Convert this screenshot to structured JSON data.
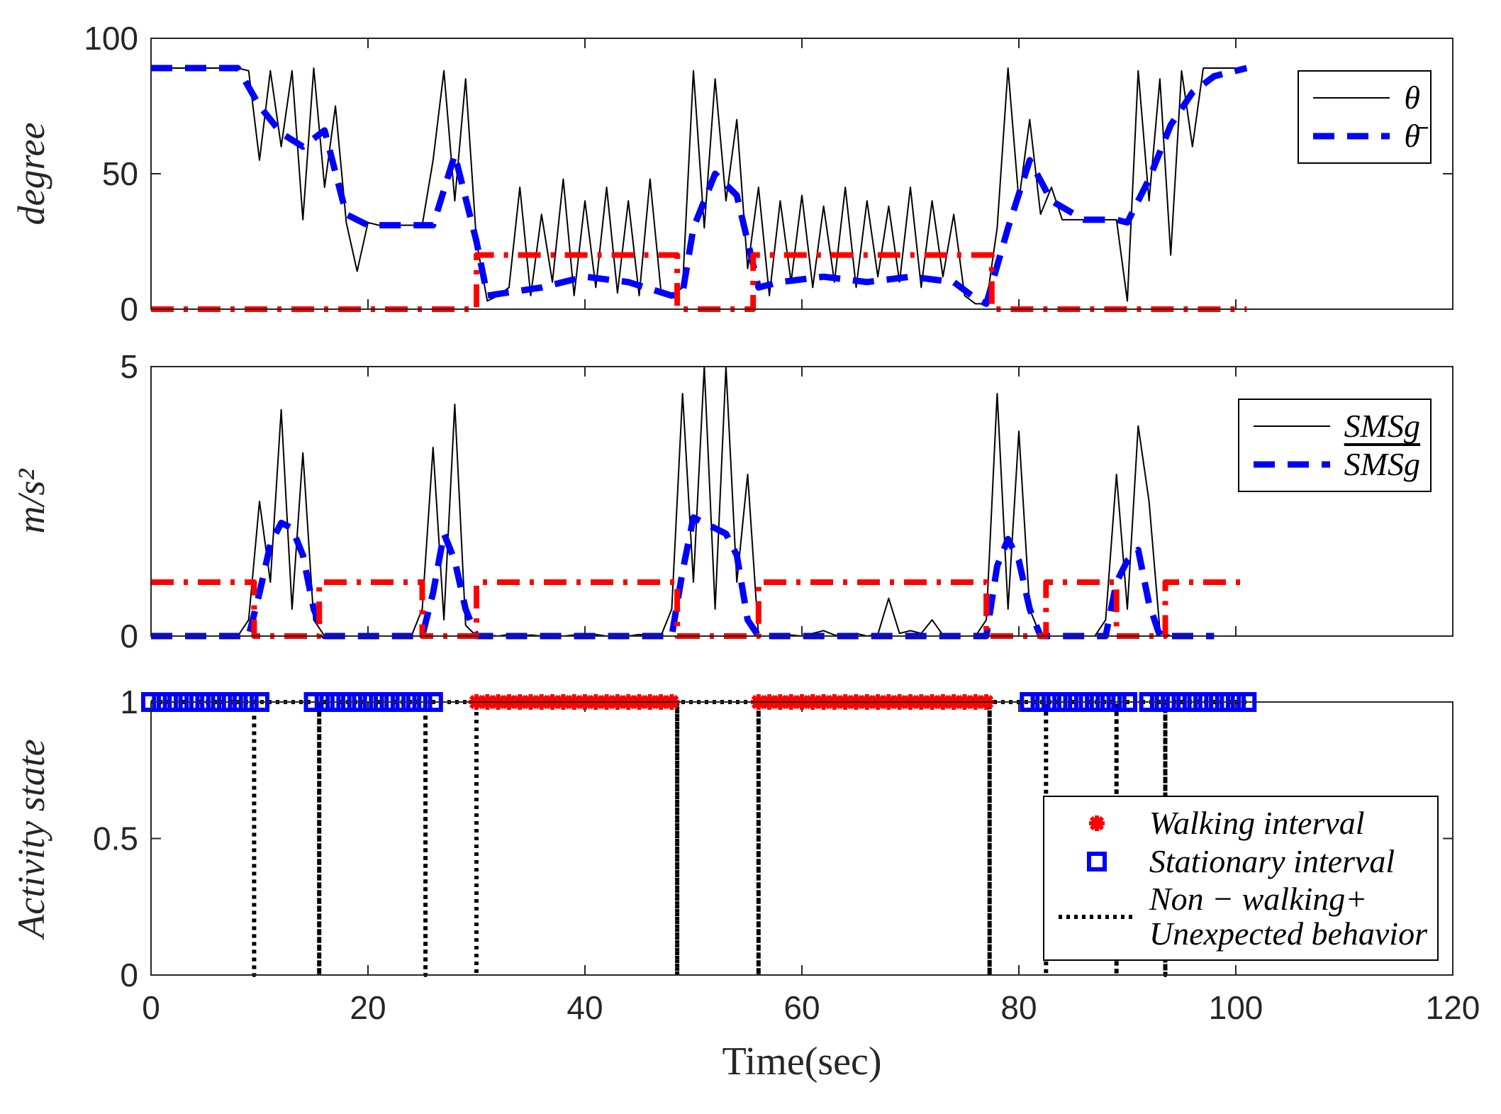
{
  "chart_data": [
    {
      "type": "line",
      "ylabel": "degree",
      "xlim": [
        0,
        120
      ],
      "xticks": [
        0,
        20,
        40,
        60,
        80,
        100,
        120
      ],
      "xtick_labels": false,
      "ylim": [
        0,
        100
      ],
      "yticks": [
        0,
        50,
        100
      ],
      "legend": "upper right",
      "series": [
        {
          "name": "θ",
          "color": "#000000",
          "style": "solid",
          "x": [
            0,
            1,
            2,
            3,
            4,
            5,
            6,
            7,
            8,
            9,
            10,
            11,
            12,
            13,
            14,
            15,
            16,
            17,
            18,
            19,
            20,
            21,
            22,
            23,
            24,
            25,
            26,
            27,
            28,
            29,
            30,
            31,
            32,
            33,
            34,
            35,
            36,
            37,
            38,
            39,
            40,
            41,
            42,
            43,
            44,
            45,
            46,
            47,
            48,
            49,
            50,
            51,
            52,
            53,
            54,
            55,
            56,
            57,
            58,
            59,
            60,
            61,
            62,
            63,
            64,
            65,
            66,
            67,
            68,
            69,
            70,
            71,
            72,
            73,
            74,
            75,
            76,
            77,
            78,
            79,
            80,
            81,
            82,
            83,
            84,
            85,
            86,
            87,
            88,
            89,
            90,
            91,
            92,
            93,
            94,
            95,
            96,
            97,
            98,
            99,
            100,
            101
          ],
          "values": [
            89,
            89,
            89,
            89,
            89,
            89,
            89,
            89,
            89,
            88,
            55,
            88,
            60,
            88,
            33,
            89,
            45,
            75,
            32,
            14,
            32,
            31,
            31,
            31,
            31,
            31,
            55,
            88,
            40,
            85,
            25,
            3,
            5,
            8,
            45,
            5,
            35,
            10,
            48,
            5,
            40,
            8,
            45,
            6,
            40,
            5,
            48,
            7,
            5,
            8,
            88,
            30,
            85,
            40,
            70,
            15,
            45,
            5,
            40,
            10,
            42,
            8,
            38,
            10,
            45,
            8,
            40,
            12,
            38,
            10,
            45,
            8,
            40,
            12,
            35,
            5,
            2,
            2,
            30,
            89,
            40,
            70,
            35,
            45,
            33,
            33,
            33,
            33,
            33,
            33,
            3,
            88,
            40,
            85,
            20,
            88,
            60,
            89,
            89,
            89,
            89,
            89
          ]
        },
        {
          "name": "θ̄",
          "color": "#0000ff",
          "style": "dashed",
          "x": [
            0,
            8,
            10,
            12,
            14,
            16,
            18,
            20,
            26,
            28,
            30,
            31,
            36,
            40,
            44,
            48,
            49,
            50,
            52,
            54,
            56,
            58,
            62,
            66,
            70,
            74,
            76,
            77,
            79,
            81,
            83,
            86,
            89,
            90,
            92,
            94,
            96,
            98,
            101
          ],
          "values": [
            89,
            89,
            75,
            65,
            60,
            66,
            35,
            31,
            31,
            57,
            25,
            5,
            8,
            12,
            10,
            5,
            6,
            30,
            50,
            42,
            8,
            10,
            12,
            10,
            12,
            10,
            4,
            2,
            30,
            55,
            40,
            33,
            33,
            32,
            48,
            68,
            80,
            86,
            89
          ]
        },
        {
          "color": "#ff0000",
          "style": "dashdot",
          "x": [
            0,
            30,
            30,
            48.5,
            48.5,
            55.5,
            55.5,
            77.5,
            77.5,
            101
          ],
          "values": [
            0,
            0,
            20,
            20,
            0,
            0,
            20,
            20,
            0,
            0
          ]
        }
      ]
    },
    {
      "type": "line",
      "ylabel": "m/s²",
      "xlim": [
        0,
        120
      ],
      "xticks": [
        0,
        20,
        40,
        60,
        80,
        100,
        120
      ],
      "xtick_labels": false,
      "ylim": [
        0,
        5
      ],
      "yticks": [
        0,
        5
      ],
      "legend": "upper right",
      "series": [
        {
          "name": "SMSg",
          "color": "#000000",
          "style": "solid",
          "x": [
            0,
            1,
            2,
            3,
            4,
            5,
            6,
            7,
            8,
            9,
            10,
            11,
            12,
            13,
            14,
            15,
            16,
            17,
            18,
            19,
            20,
            21,
            22,
            23,
            24,
            25,
            26,
            27,
            28,
            29,
            30,
            31,
            32,
            33,
            34,
            35,
            36,
            37,
            38,
            39,
            40,
            41,
            42,
            43,
            44,
            45,
            46,
            47,
            48,
            49,
            50,
            51,
            52,
            53,
            54,
            55,
            56,
            57,
            58,
            59,
            60,
            61,
            62,
            63,
            64,
            65,
            66,
            67,
            68,
            69,
            70,
            71,
            72,
            73,
            74,
            75,
            76,
            77,
            78,
            79,
            80,
            81,
            82,
            83,
            84,
            85,
            86,
            87,
            88,
            89,
            90,
            91,
            92,
            93,
            94,
            95,
            96,
            97,
            98,
            99,
            100,
            101
          ],
          "values": [
            0,
            0,
            0,
            0,
            0,
            0,
            0,
            0,
            0,
            0.3,
            2.5,
            1,
            4.2,
            0.5,
            3.4,
            0.3,
            0,
            0,
            0,
            0,
            0,
            0,
            0,
            0,
            0,
            0.5,
            3.5,
            0.3,
            4.3,
            0.2,
            0,
            0.02,
            0,
            0.03,
            0,
            0.02,
            0,
            0.03,
            0,
            0.02,
            0,
            0.03,
            0,
            0.02,
            0,
            0.03,
            0,
            0,
            0.5,
            4.5,
            1,
            5,
            0.5,
            5,
            1,
            3,
            0,
            0,
            0,
            0.02,
            0,
            0.05,
            0.1,
            0.02,
            0,
            0.05,
            0,
            0.03,
            0.7,
            0.05,
            0.1,
            0.05,
            0.3,
            0.02,
            0,
            0,
            0,
            0.3,
            4.5,
            0.5,
            3.8,
            0.5,
            0,
            0,
            0,
            0,
            0,
            0,
            0.3,
            3,
            0.5,
            3.9,
            2.5,
            0.1,
            0,
            0,
            0,
            0,
            0,
            0,
            0,
            0
          ]
        },
        {
          "name": "SMSg",
          "name_overline": true,
          "color": "#0000ff",
          "style": "dashed",
          "x": [
            0,
            9,
            10,
            11,
            12,
            13,
            14,
            15,
            16,
            25,
            26,
            27,
            28,
            29,
            30,
            48,
            49,
            50,
            51,
            52,
            53,
            54,
            55,
            56,
            77,
            78,
            79,
            80,
            81,
            82,
            88,
            89,
            90,
            91,
            92,
            93,
            98
          ],
          "values": [
            0,
            0,
            0.8,
            1.7,
            2.1,
            2.0,
            1.5,
            0.5,
            0,
            0,
            0.8,
            1.9,
            1.4,
            0.5,
            0,
            0,
            1.2,
            2.2,
            2.1,
            2.0,
            1.9,
            1.5,
            0.3,
            0,
            0,
            1.3,
            1.8,
            1.4,
            0.5,
            0,
            0,
            1.0,
            1.4,
            1.6,
            0.6,
            0,
            0
          ]
        },
        {
          "color": "#ff0000",
          "style": "dashdot",
          "x": [
            0,
            9.5,
            9.5,
            15.5,
            15.5,
            25,
            25,
            30,
            30,
            48.5,
            48.5,
            56,
            56,
            77,
            77,
            82.5,
            82.5,
            89,
            89,
            93.5,
            93.5,
            101
          ],
          "values": [
            1,
            1,
            0,
            0,
            1,
            1,
            0,
            0,
            1,
            1,
            0,
            0,
            1,
            1,
            0,
            0,
            1,
            1,
            0,
            0,
            1,
            1
          ]
        }
      ]
    },
    {
      "type": "line",
      "ylabel": "Activity state",
      "xlabel": "Time(sec)",
      "xlim": [
        0,
        120
      ],
      "xticks": [
        0,
        20,
        40,
        60,
        80,
        100,
        120
      ],
      "xtick_labels": true,
      "ylim": [
        0,
        1
      ],
      "yticks": [
        0,
        0.5,
        1
      ],
      "legend": "lower right",
      "series": [
        {
          "name": "Walking interval",
          "color": "#ff0000",
          "style": "none",
          "marker": "asterisk",
          "x": [
            30,
            31,
            32,
            33,
            34,
            35,
            36,
            37,
            38,
            39,
            40,
            41,
            42,
            43,
            44,
            45,
            46,
            47,
            48,
            56,
            57,
            58,
            59,
            60,
            61,
            62,
            63,
            64,
            65,
            66,
            67,
            68,
            69,
            70,
            71,
            72,
            73,
            74,
            75,
            76,
            77
          ],
          "values": [
            1,
            1,
            1,
            1,
            1,
            1,
            1,
            1,
            1,
            1,
            1,
            1,
            1,
            1,
            1,
            1,
            1,
            1,
            1,
            1,
            1,
            1,
            1,
            1,
            1,
            1,
            1,
            1,
            1,
            1,
            1,
            1,
            1,
            1,
            1,
            1,
            1,
            1,
            1,
            1,
            1
          ]
        },
        {
          "name": "Stationary interval",
          "color": "#0000ff",
          "style": "none",
          "marker": "square",
          "x": [
            0,
            1,
            2,
            3,
            4,
            5,
            6,
            7,
            8,
            9,
            10,
            15,
            16,
            17,
            18,
            19,
            20,
            21,
            22,
            23,
            24,
            25,
            26,
            81,
            82,
            83,
            84,
            85,
            86,
            87,
            88,
            89,
            90,
            92,
            93,
            94,
            95,
            96,
            97,
            98,
            99,
            100,
            101
          ],
          "values": [
            1,
            1,
            1,
            1,
            1,
            1,
            1,
            1,
            1,
            1,
            1,
            1,
            1,
            1,
            1,
            1,
            1,
            1,
            1,
            1,
            1,
            1,
            1,
            1,
            1,
            1,
            1,
            1,
            1,
            1,
            1,
            1,
            1,
            1,
            1,
            1,
            1,
            1,
            1,
            1,
            1,
            1,
            1
          ]
        },
        {
          "name": "Non − walking+\nUnexpected behavior",
          "color": "#000000",
          "style": "dotted",
          "x": [
            0,
            9.5,
            9.5,
            9.5,
            15.5,
            15.5,
            15.5,
            25.3,
            25.3,
            25.3,
            30,
            30,
            30,
            48.5,
            48.5,
            48.5,
            56,
            56,
            56,
            77.3,
            77.3,
            77.3,
            82.5,
            82.5,
            82.5,
            89,
            89,
            89,
            93.5,
            93.5,
            93.5,
            101
          ],
          "values": [
            1,
            1,
            0,
            1,
            1,
            0,
            1,
            1,
            0,
            1,
            1,
            0,
            1,
            1,
            0,
            1,
            1,
            0,
            1,
            1,
            0,
            1,
            1,
            0,
            1,
            1,
            0,
            1,
            1,
            0,
            1,
            1
          ]
        }
      ]
    }
  ]
}
